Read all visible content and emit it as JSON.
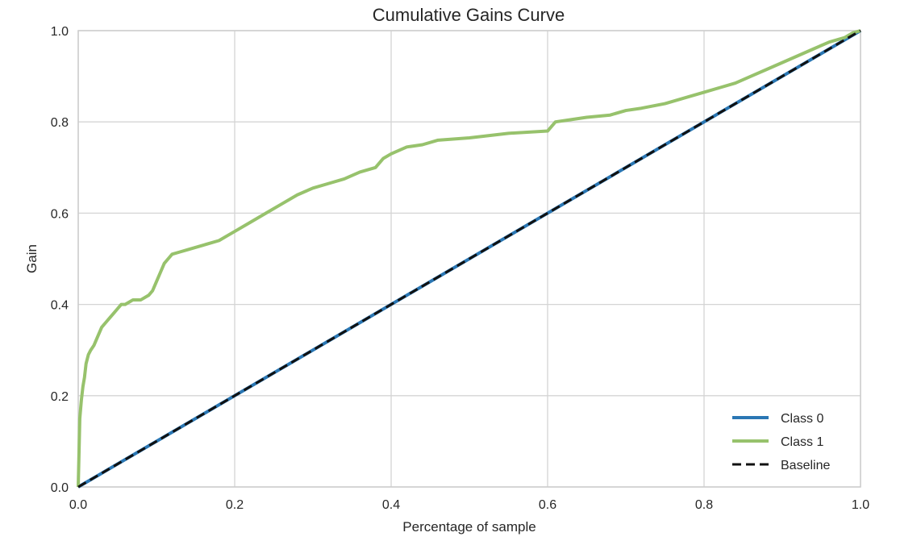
{
  "chart_data": {
    "type": "line",
    "title": "Cumulative Gains Curve",
    "xlabel": "Percentage of sample",
    "ylabel": "Gain",
    "xlim": [
      0,
      1
    ],
    "ylim": [
      0,
      1
    ],
    "xticks": [
      "0.0",
      "0.2",
      "0.4",
      "0.6",
      "0.8",
      "1.0"
    ],
    "yticks": [
      "0.0",
      "0.2",
      "0.4",
      "0.6",
      "0.8",
      "1.0"
    ],
    "grid": true,
    "legend_position": "lower-right",
    "series": [
      {
        "name": "Class 0",
        "color": "#2a77b4",
        "style": "solid",
        "x": [
          0,
          1
        ],
        "y": [
          0,
          1
        ]
      },
      {
        "name": "Class 1",
        "color": "#97c26c",
        "style": "solid",
        "x": [
          0,
          0.002,
          0.004,
          0.006,
          0.008,
          0.01,
          0.013,
          0.016,
          0.02,
          0.025,
          0.03,
          0.035,
          0.04,
          0.045,
          0.05,
          0.055,
          0.06,
          0.07,
          0.08,
          0.09,
          0.095,
          0.1,
          0.105,
          0.11,
          0.115,
          0.12,
          0.13,
          0.14,
          0.16,
          0.18,
          0.19,
          0.2,
          0.22,
          0.24,
          0.26,
          0.28,
          0.3,
          0.32,
          0.34,
          0.36,
          0.38,
          0.39,
          0.4,
          0.42,
          0.44,
          0.46,
          0.5,
          0.55,
          0.6,
          0.61,
          0.63,
          0.65,
          0.68,
          0.7,
          0.72,
          0.75,
          0.78,
          0.8,
          0.82,
          0.84,
          0.86,
          0.88,
          0.9,
          0.92,
          0.94,
          0.96,
          0.98,
          0.99,
          1.0
        ],
        "y": [
          0,
          0.15,
          0.19,
          0.22,
          0.24,
          0.27,
          0.29,
          0.3,
          0.31,
          0.33,
          0.35,
          0.36,
          0.37,
          0.38,
          0.39,
          0.4,
          0.4,
          0.41,
          0.41,
          0.42,
          0.43,
          0.45,
          0.47,
          0.49,
          0.5,
          0.51,
          0.515,
          0.52,
          0.53,
          0.54,
          0.55,
          0.56,
          0.58,
          0.6,
          0.62,
          0.64,
          0.655,
          0.665,
          0.675,
          0.69,
          0.7,
          0.72,
          0.73,
          0.745,
          0.75,
          0.76,
          0.765,
          0.775,
          0.78,
          0.8,
          0.805,
          0.81,
          0.815,
          0.825,
          0.83,
          0.84,
          0.855,
          0.865,
          0.875,
          0.885,
          0.9,
          0.915,
          0.93,
          0.945,
          0.96,
          0.975,
          0.985,
          0.995,
          1.0
        ]
      },
      {
        "name": "Baseline",
        "color": "#111111",
        "style": "dashed",
        "x": [
          0,
          1
        ],
        "y": [
          0,
          1
        ]
      }
    ]
  }
}
